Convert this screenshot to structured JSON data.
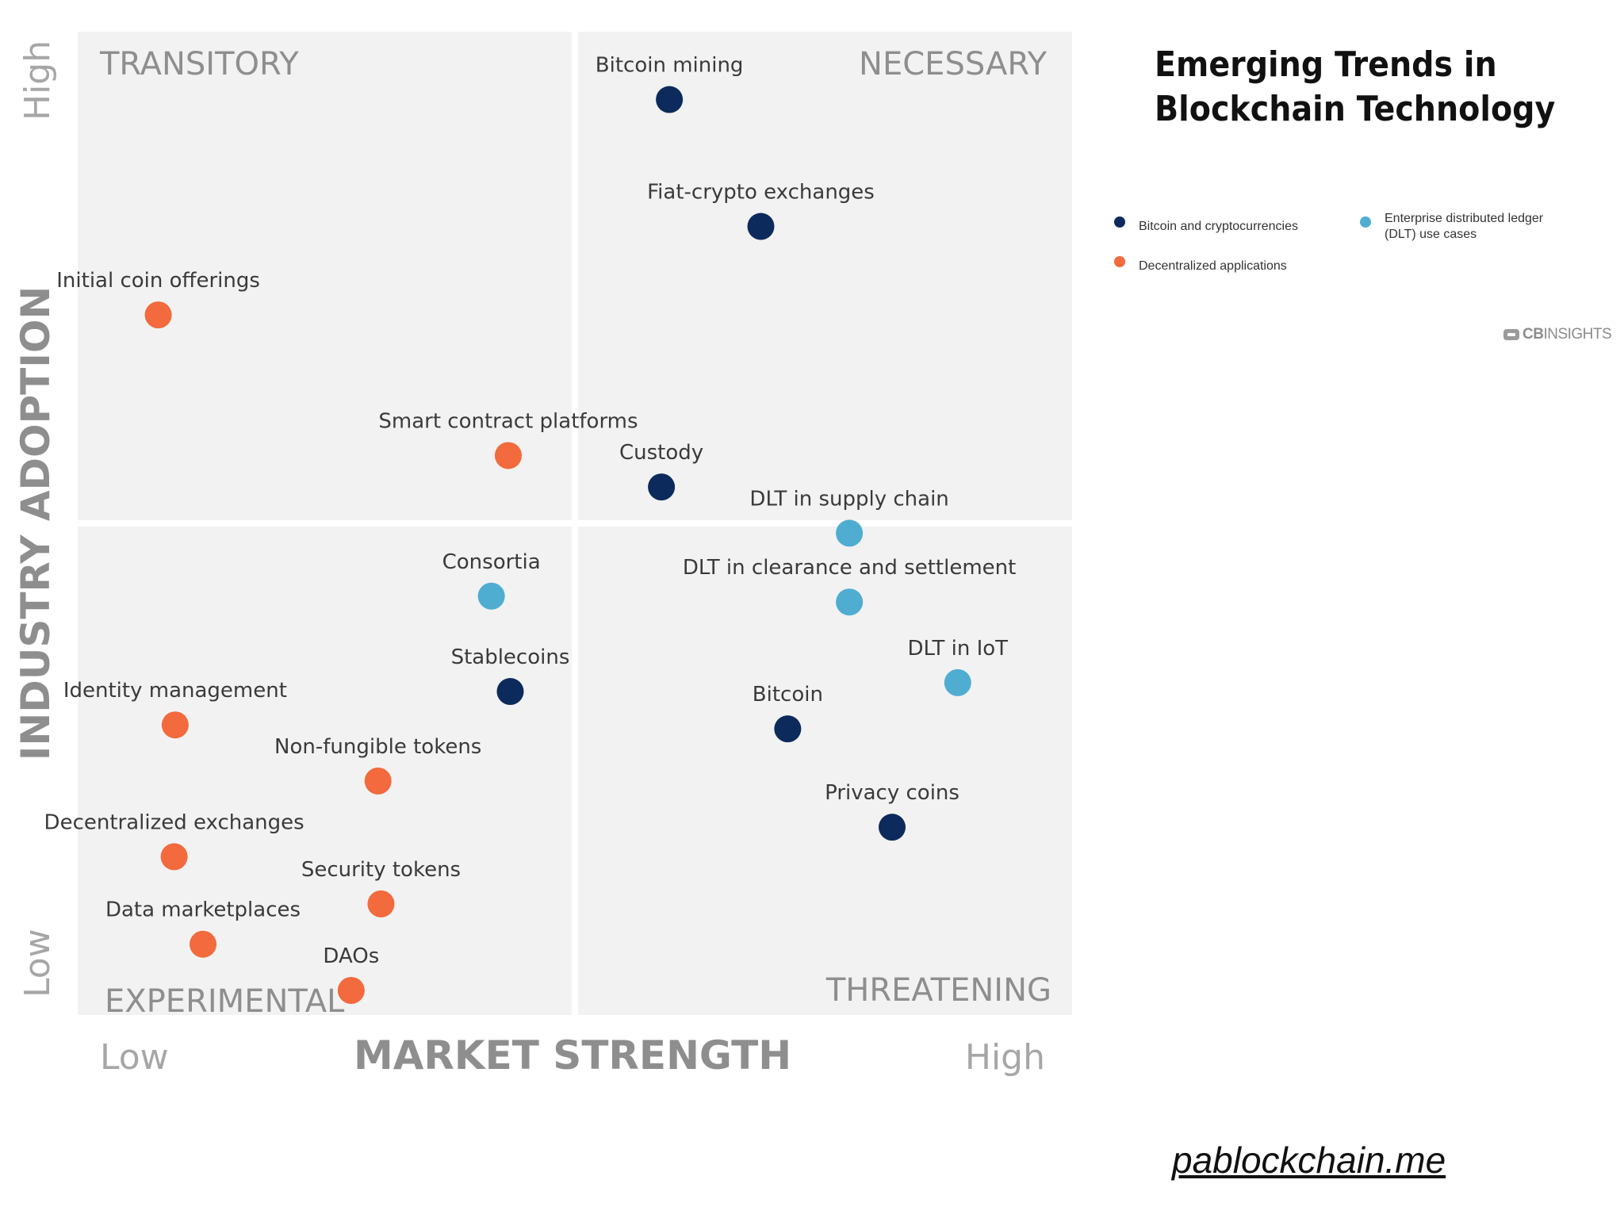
{
  "chart_data": {
    "type": "scatter",
    "title": "Emerging Trends in Blockchain Technology",
    "title_lines": [
      "Emerging Trends in",
      "Blockchain Technology"
    ],
    "xlabel": "MARKET STRENGTH",
    "ylabel": "INDUSTRY ADOPTION",
    "x_low_label": "Low",
    "x_high_label": "High",
    "y_low_label": "Low",
    "y_high_label": "High",
    "xlim": [
      0,
      100
    ],
    "ylim": [
      0,
      100
    ],
    "quadrants": {
      "top_left": "TRANSITORY",
      "top_right": "NECESSARY",
      "bottom_left": "EXPERIMENTAL",
      "bottom_right": "THREATENING"
    },
    "legend": [
      {
        "key": "crypto",
        "label": "Bitcoin and cryptocurrencies",
        "color": "#0d2a5c"
      },
      {
        "key": "dapps",
        "label": "Decentralized applications",
        "color": "#f26a3d"
      },
      {
        "key": "dlt",
        "label_lines": [
          "Enterprise distributed ledger",
          "(DLT) use cases"
        ],
        "color": "#4fadd2"
      }
    ],
    "points": [
      {
        "label": "Bitcoin mining",
        "category": "crypto",
        "x": 59.5,
        "y": 93.1
      },
      {
        "label": "Fiat-crypto exchanges",
        "category": "crypto",
        "x": 68.7,
        "y": 80.2
      },
      {
        "label": "Initial coin offerings",
        "category": "dapps",
        "x": 8.1,
        "y": 71.2
      },
      {
        "label": "Smart contract platforms",
        "category": "dapps",
        "x": 43.3,
        "y": 56.9
      },
      {
        "label": "Custody",
        "category": "crypto",
        "x": 58.7,
        "y": 53.7
      },
      {
        "label": "DLT in supply chain",
        "category": "dlt",
        "x": 77.6,
        "y": 49.0
      },
      {
        "label": "Consortia",
        "category": "dlt",
        "x": 41.6,
        "y": 42.6
      },
      {
        "label": "DLT in clearance and settlement",
        "category": "dlt",
        "x": 77.6,
        "y": 42.0
      },
      {
        "label": "Stablecoins",
        "category": "crypto",
        "x": 43.5,
        "y": 32.9
      },
      {
        "label": "DLT in IoT",
        "category": "dlt",
        "x": 88.5,
        "y": 33.8
      },
      {
        "label": "Identity management",
        "category": "dapps",
        "x": 9.8,
        "y": 29.5
      },
      {
        "label": "Bitcoin",
        "category": "crypto",
        "x": 71.4,
        "y": 29.1
      },
      {
        "label": "Non-fungible tokens",
        "category": "dapps",
        "x": 30.2,
        "y": 23.8
      },
      {
        "label": "Privacy coins",
        "category": "crypto",
        "x": 81.9,
        "y": 19.1
      },
      {
        "label": "Decentralized exchanges",
        "category": "dapps",
        "x": 9.7,
        "y": 16.1
      },
      {
        "label": "Security tokens",
        "category": "dapps",
        "x": 30.5,
        "y": 11.3
      },
      {
        "label": "Data marketplaces",
        "category": "dapps",
        "x": 12.6,
        "y": 7.2
      },
      {
        "label": "DAOs",
        "category": "dapps",
        "x": 27.5,
        "y": 2.5
      }
    ]
  },
  "brand": {
    "part1": "CB",
    "part2": "INSIGHTS"
  },
  "footer": {
    "text": "pablockchain.me"
  },
  "colors": {
    "panel": "#f2f2f2",
    "divider": "#ffffff"
  }
}
